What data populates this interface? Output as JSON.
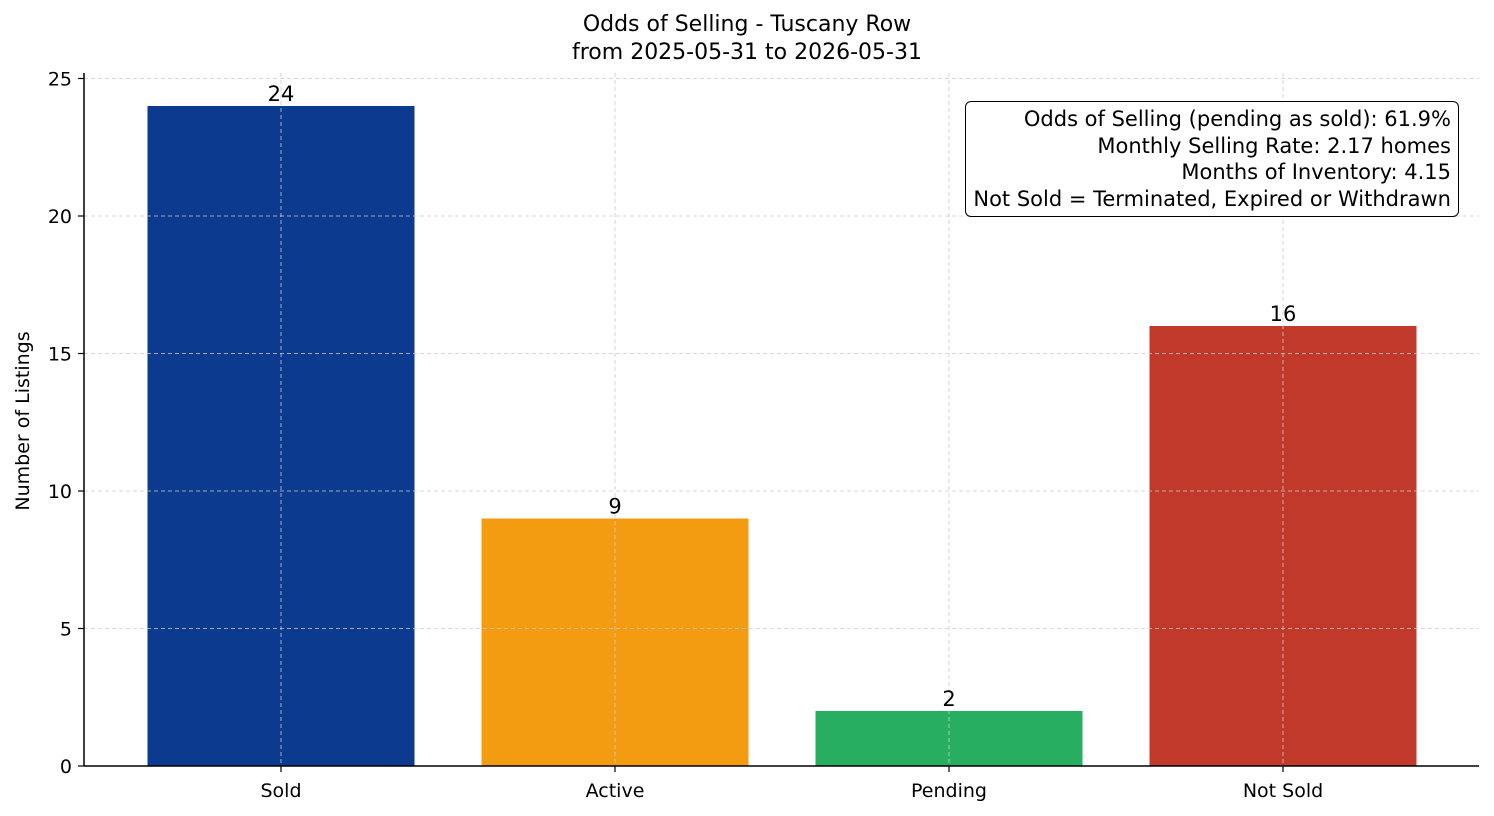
{
  "chart_data": {
    "type": "bar",
    "title": "Odds of Selling - Tuscany Row",
    "subtitle": "from 2025-05-31 to 2026-05-31",
    "xlabel": "",
    "ylabel": "Number of Listings",
    "categories": [
      "Sold",
      "Active",
      "Pending",
      "Not Sold"
    ],
    "values": [
      24,
      9,
      2,
      16
    ],
    "data_labels": [
      "24",
      "9",
      "2",
      "16"
    ],
    "colors": [
      "#0b3a8e",
      "#f39c12",
      "#27ae60",
      "#c0392b"
    ],
    "ylim": [
      0,
      25.2
    ],
    "yticks": [
      0,
      5,
      10,
      15,
      20,
      25
    ],
    "grid": true,
    "annotations": [
      "Odds of Selling (pending as sold): 61.9%",
      "Monthly Selling Rate: 2.17 homes",
      "Months of Inventory: 4.15",
      "Not Sold = Terminated, Expired or Withdrawn"
    ],
    "annotation_placement": "top-right"
  }
}
